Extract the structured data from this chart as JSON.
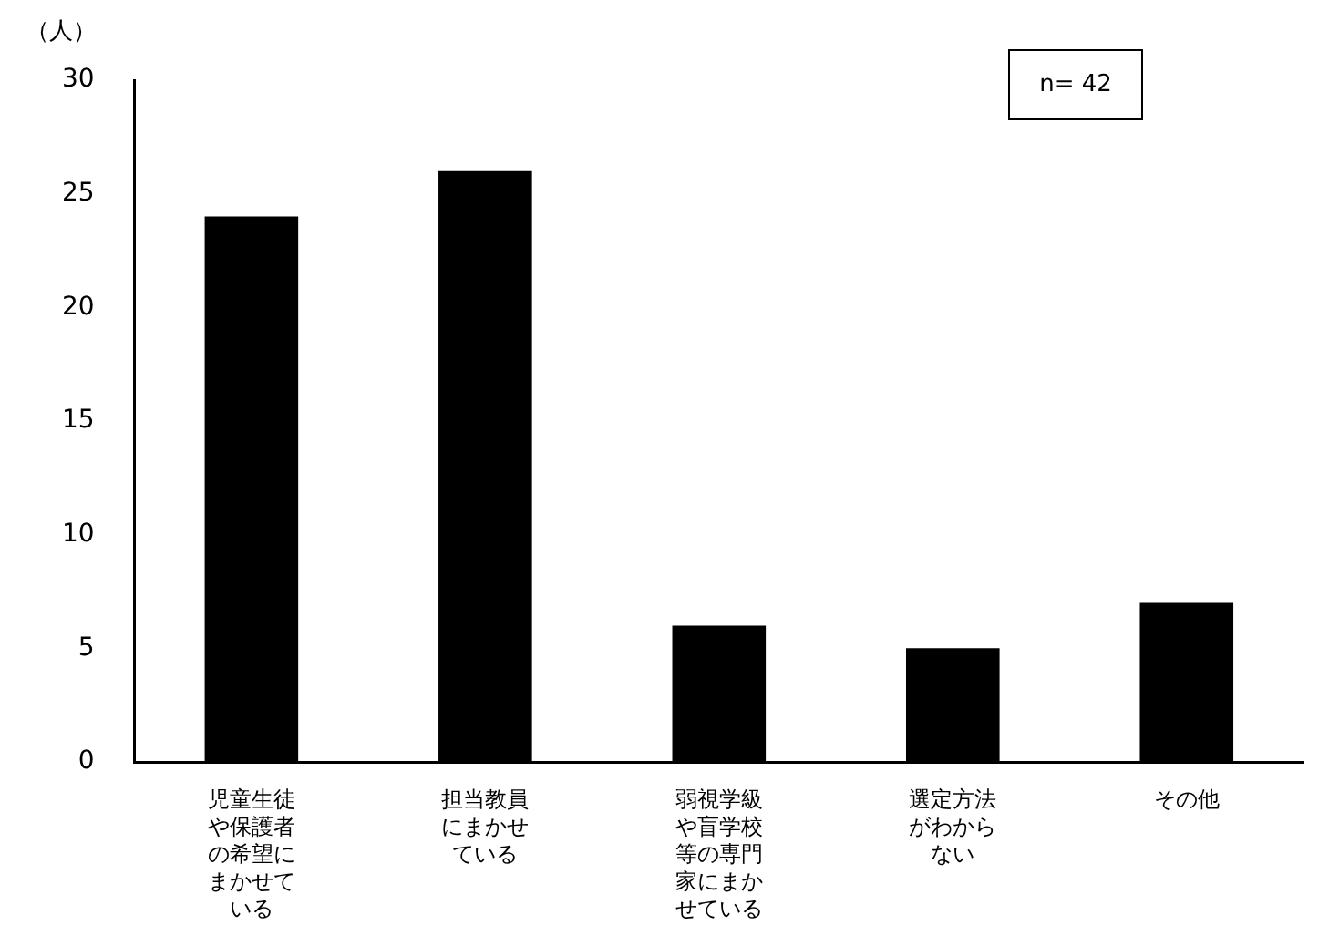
{
  "chart_data": {
    "type": "bar",
    "ylabel": "（人）",
    "categories": [
      "児童生徒や保護者の希望にまかせている",
      "担当教員にまかせている",
      "弱視学級や盲学校等の専門家にまかせている",
      "選定方法がわからない",
      "その他"
    ],
    "values": [
      24,
      26,
      6,
      5,
      7
    ],
    "color": "#000000",
    "ylim": [
      0,
      30
    ],
    "yticks": [
      0,
      5,
      10,
      15,
      20,
      25,
      30
    ],
    "grid": false,
    "legend": false,
    "annotations": [
      "n= 42"
    ]
  }
}
